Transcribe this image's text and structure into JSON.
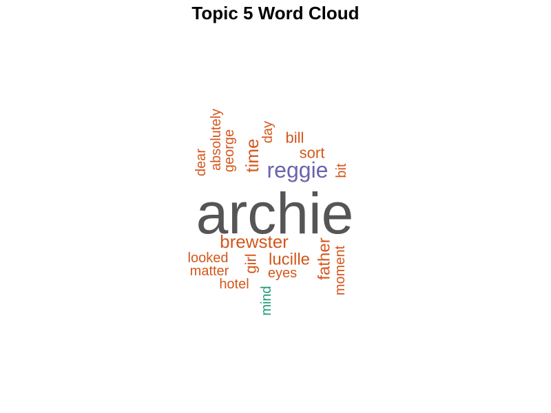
{
  "chart_data": {
    "type": "wordcloud",
    "title": "Topic 5 Word Cloud",
    "colors": {
      "primary": "#555555",
      "accent_purple": "#6a63ad",
      "orange": "#d4561b",
      "green": "#1b9a77"
    },
    "words": [
      {
        "text": "archie",
        "color": "#555555",
        "vertical": false
      },
      {
        "text": "reggie",
        "color": "#6a63ad",
        "vertical": false
      },
      {
        "text": "brewster",
        "color": "#d4561b",
        "vertical": false
      },
      {
        "text": "lucille",
        "color": "#d4561b",
        "vertical": false
      },
      {
        "text": "time",
        "color": "#d4561b",
        "vertical": true
      },
      {
        "text": "father",
        "color": "#d4561b",
        "vertical": true
      },
      {
        "text": "girl",
        "color": "#d4561b",
        "vertical": true
      },
      {
        "text": "sort",
        "color": "#d4561b",
        "vertical": false
      },
      {
        "text": "bill",
        "color": "#d4561b",
        "vertical": false
      },
      {
        "text": "looked",
        "color": "#d4561b",
        "vertical": false
      },
      {
        "text": "eyes",
        "color": "#d4561b",
        "vertical": false
      },
      {
        "text": "matter",
        "color": "#d4561b",
        "vertical": false
      },
      {
        "text": "hotel",
        "color": "#d4561b",
        "vertical": false
      },
      {
        "text": "george",
        "color": "#d4561b",
        "vertical": true
      },
      {
        "text": "absolutely",
        "color": "#d4561b",
        "vertical": true
      },
      {
        "text": "dear",
        "color": "#d4561b",
        "vertical": true
      },
      {
        "text": "day",
        "color": "#d4561b",
        "vertical": true
      },
      {
        "text": "bit",
        "color": "#d4561b",
        "vertical": true
      },
      {
        "text": "moment",
        "color": "#d4561b",
        "vertical": true
      },
      {
        "text": "mind",
        "color": "#1b9a77",
        "vertical": true
      }
    ]
  }
}
